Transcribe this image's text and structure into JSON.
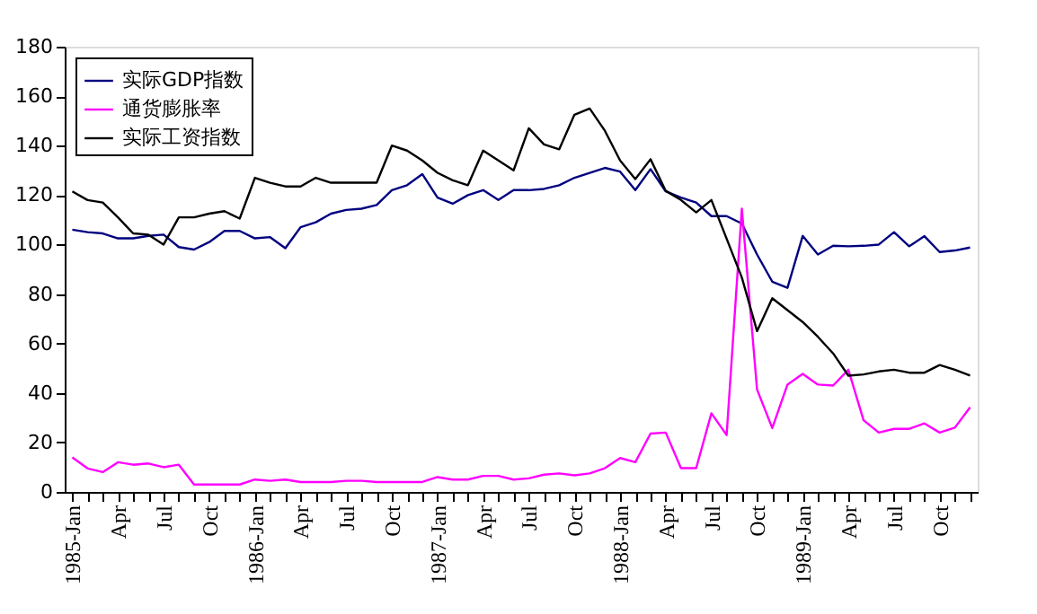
{
  "chart_data": {
    "type": "line",
    "categories": [
      "1985-Jan",
      null,
      null,
      "Apr",
      null,
      null,
      "Jul",
      null,
      null,
      "Oct",
      null,
      null,
      "1986-Jan",
      null,
      null,
      "Apr",
      null,
      null,
      "Jul",
      null,
      null,
      "Oct",
      null,
      null,
      "1987-Jan",
      null,
      null,
      "Apr",
      null,
      null,
      "Jul",
      null,
      null,
      "Oct",
      null,
      null,
      "1988-Jan",
      null,
      null,
      "Apr",
      null,
      null,
      "Jul",
      null,
      null,
      "Oct",
      null,
      null,
      "1989-Jan",
      null,
      null,
      "Apr",
      null,
      null,
      "Jul",
      null,
      null,
      "Oct",
      null,
      null
    ],
    "series": [
      {
        "name": "实际GDP指数",
        "color": "#000080",
        "values": [
          106,
          105,
          104.5,
          102.5,
          102.5,
          103.5,
          104,
          99,
          98,
          101,
          105.5,
          105.5,
          102.5,
          103,
          98.5,
          107,
          109,
          112.5,
          114,
          114.5,
          116,
          122,
          124,
          128.5,
          119,
          116.5,
          120,
          122,
          118,
          122,
          122,
          122.5,
          124,
          127,
          129,
          131,
          129.5,
          122,
          130.5,
          121.5,
          119,
          117,
          111.5,
          111.5,
          108.5,
          96,
          85,
          82.5,
          103.5,
          96,
          99.5,
          99.3,
          99.5,
          100,
          105,
          99.3,
          103.4,
          97,
          97.6,
          98.8
        ]
      },
      {
        "name": "通货膨胀率",
        "color": "#ff00ff",
        "values": [
          14,
          9.5,
          8,
          12,
          11,
          11.5,
          10,
          11,
          3,
          3,
          3,
          3,
          5,
          4.5,
          5,
          4,
          4,
          4,
          4.5,
          4.5,
          4,
          4,
          4,
          4,
          6,
          5,
          5,
          6.5,
          6.5,
          5,
          5.5,
          7,
          7.5,
          6.7,
          7.5,
          9.6,
          13.7,
          12,
          23.6,
          24,
          9.6,
          9.6,
          31.8,
          23,
          114.5,
          41.4,
          25.8,
          43.4,
          47.7,
          43.4,
          43,
          49.4,
          29,
          24,
          25.5,
          25.5,
          27.7,
          24,
          26,
          34.2
        ]
      },
      {
        "name": "实际工资指数",
        "color": "#000000",
        "values": [
          121.5,
          118,
          117,
          111,
          104.5,
          104,
          100,
          111,
          111,
          112.5,
          113.5,
          110.5,
          127,
          125,
          123.5,
          123.5,
          127,
          125,
          125,
          125,
          125,
          140,
          138,
          134,
          129,
          126,
          124,
          138,
          134,
          130,
          147,
          140.5,
          138.5,
          152.5,
          155,
          146,
          134,
          126.5,
          134.5,
          121.7,
          118,
          113,
          118,
          102.4,
          86.7,
          65,
          78.3,
          73.5,
          68.7,
          62.7,
          56,
          47,
          47.5,
          48.7,
          49.4,
          48.2,
          48.2,
          51.3,
          49.4,
          47
        ]
      }
    ],
    "ylim": [
      0,
      180
    ],
    "yticks": [
      0,
      20,
      40,
      60,
      80,
      100,
      120,
      140,
      160,
      180
    ],
    "grid": false,
    "legend": "top left",
    "line_style": "solid",
    "marker": "none"
  }
}
